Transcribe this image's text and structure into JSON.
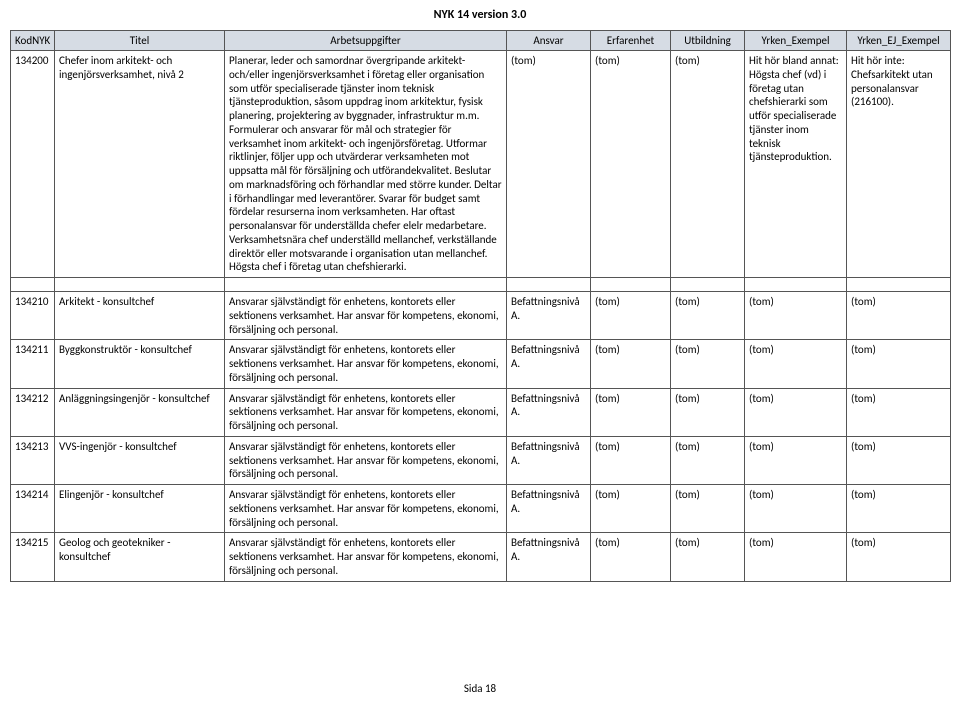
{
  "doc_title": "NYK 14 version 3.0",
  "footer": "Sida 18",
  "columns": {
    "c0": "KodNYK",
    "c1": "Titel",
    "c2": "Arbetsuppgifter",
    "c3": "Ansvar",
    "c4": "Erfarenhet",
    "c5": "Utbildning",
    "c6": "Yrken_Exempel",
    "c7": "Yrken_EJ_Exempel"
  },
  "rows": {
    "r0": {
      "kod": "134200",
      "titel": "Chefer inom arkitekt- och ingenjörsverksamhet, nivå 2",
      "arb": "Planerar, leder och samordnar övergripande arkitekt- och/eller ingenjörsverksamhet i företag eller organisation som utför specialiserade tjänster inom teknisk tjänsteproduktion, såsom uppdrag inom arkitektur, fysisk planering, projektering av byggnader, infrastruktur m.m. Formulerar och ansvarar för mål och strategier för verksamhet inom arkitekt- och ingenjörsföretag. Utformar riktlinjer, följer upp och utvärderar verksamheten mot uppsatta mål för försäljning och utförandekvalitet. Beslutar om marknadsföring och förhandlar med större kunder. Deltar i förhandlingar med leverantörer. Svarar för budget samt fördelar resurserna inom verksamheten. Har oftast personalansvar för underställda chefer elelr medarbetare. Verksamhetsnära chef underställd mellanchef, verkställande direktör eller motsvarande i organisation utan mellanchef. Högsta chef i företag utan chefshierarki.",
      "ans": "(tom)",
      "erf": "(tom)",
      "utb": "(tom)",
      "yex": "Hit hör bland annat: Högsta chef (vd) i företag utan chefshierarki som utför specialiserade tjänster inom teknisk tjänsteproduktion.",
      "yej": "Hit hör inte: Chefsarkitekt utan personalansvar (216100)."
    },
    "r1": {
      "kod": "134210",
      "titel": "Arkitekt - konsultchef",
      "arb": "Ansvarar självständigt för enhetens, kontorets eller sektionens verksamhet. Har ansvar för kompetens, ekonomi, försäljning och personal.",
      "ans": "Befattningsnivå A.",
      "erf": "(tom)",
      "utb": "(tom)",
      "yex": "(tom)",
      "yej": "(tom)"
    },
    "r2": {
      "kod": "134211",
      "titel": "Byggkonstruktör - konsultchef",
      "arb": "Ansvarar självständigt för enhetens, kontorets eller sektionens verksamhet. Har ansvar för kompetens, ekonomi, försäljning och personal.",
      "ans": "Befattningsnivå A.",
      "erf": "(tom)",
      "utb": "(tom)",
      "yex": "(tom)",
      "yej": "(tom)"
    },
    "r3": {
      "kod": "134212",
      "titel": "Anläggningsingenjör - konsultchef",
      "arb": "Ansvarar självständigt för enhetens, kontorets eller sektionens verksamhet. Har ansvar för kompetens, ekonomi, försäljning och personal.",
      "ans": "Befattningsnivå A.",
      "erf": "(tom)",
      "utb": "(tom)",
      "yex": "(tom)",
      "yej": "(tom)"
    },
    "r4": {
      "kod": "134213",
      "titel": "VVS-ingenjör - konsultchef",
      "arb": "Ansvarar självständigt för enhetens, kontorets eller sektionens verksamhet. Har ansvar för kompetens, ekonomi, försäljning och personal.",
      "ans": "Befattningsnivå A.",
      "erf": "(tom)",
      "utb": "(tom)",
      "yex": "(tom)",
      "yej": "(tom)"
    },
    "r5": {
      "kod": "134214",
      "titel": "Elingenjör - konsultchef",
      "arb": "Ansvarar självständigt för enhetens, kontorets eller sektionens verksamhet. Har ansvar för kompetens, ekonomi, försäljning och personal.",
      "ans": "Befattningsnivå A.",
      "erf": "(tom)",
      "utb": "(tom)",
      "yex": "(tom)",
      "yej": "(tom)"
    },
    "r6": {
      "kod": "134215",
      "titel": "Geolog och geotekniker - konsultchef",
      "arb": "Ansvarar självständigt för enhetens, kontorets eller sektionens verksamhet. Har ansvar för kompetens, ekonomi, försäljning och personal.",
      "ans": "Befattningsnivå A.",
      "erf": "(tom)",
      "utb": "(tom)",
      "yex": "(tom)",
      "yej": "(tom)"
    }
  }
}
